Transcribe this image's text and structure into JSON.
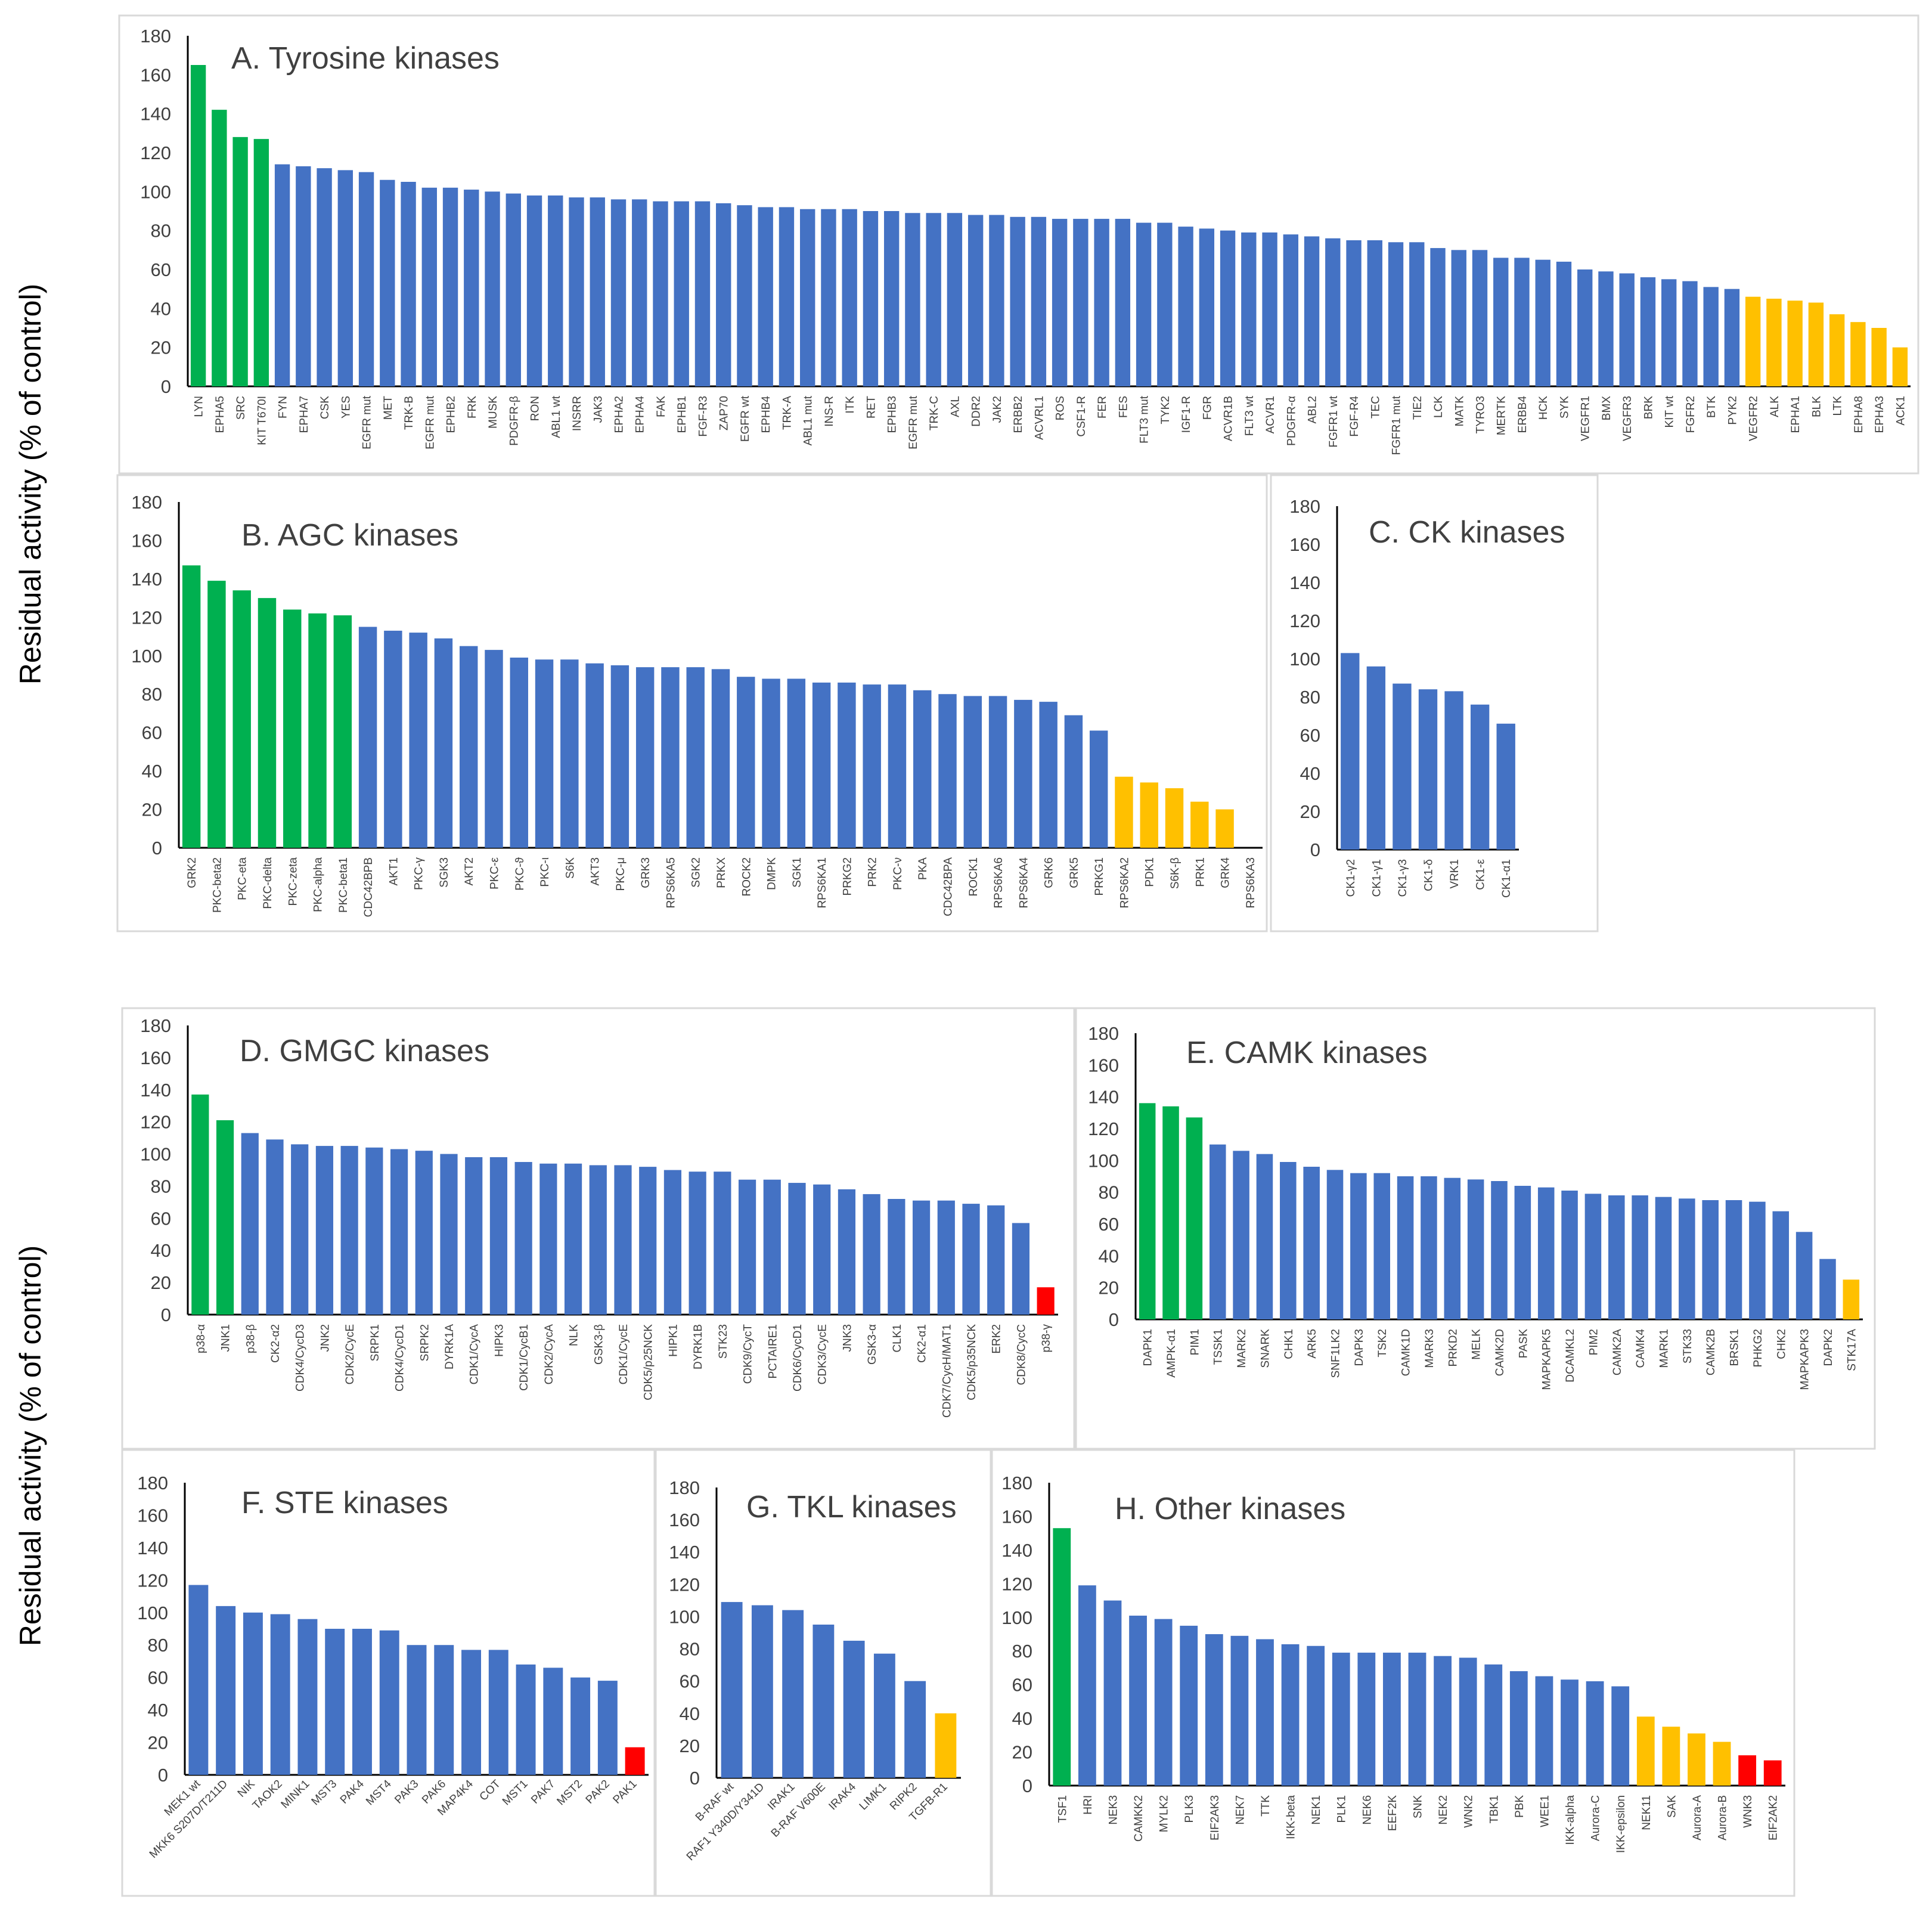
{
  "figure": {
    "ylabel_top": "Residual activity (% of control)",
    "ylabel_bottom": "Residual activity (% of control)",
    "colors": {
      "high": "#00b050",
      "normal": "#4472c4",
      "low": "#ffc000",
      "very_low": "#ff0000"
    },
    "yticks": [
      "0",
      "20",
      "40",
      "60",
      "80",
      "100",
      "120",
      "140",
      "160",
      "180"
    ]
  },
  "chart_data": [
    {
      "id": "A",
      "type": "bar",
      "title": "A. Tyrosine kinases",
      "ylabel": "Residual activity (% of control)",
      "ylim": [
        0,
        180
      ],
      "categories": [
        "LYN",
        "EPHA5",
        "SRC",
        "KIT T670I",
        "FYN",
        "EPHA7",
        "CSK",
        "YES",
        "EGFR mut",
        "MET",
        "TRK-B",
        "EGFR mut",
        "EPHB2",
        "FRK",
        "MUSK",
        "PDGFR-β",
        "RON",
        "ABL1 wt",
        "INSRR",
        "JAK3",
        "EPHA2",
        "EPHA4",
        "FAK",
        "EPHB1",
        "FGF-R3",
        "ZAP70",
        "EGFR wt",
        "EPHB4",
        "TRK-A",
        "ABL1 mut",
        "INS-R",
        "ITK",
        "RET",
        "EPHB3",
        "EGFR mut",
        "TRK-C",
        "AXL",
        "DDR2",
        "JAK2",
        "ERBB2",
        "ACVRL1",
        "ROS",
        "CSF1-R",
        "FER",
        "FES",
        "FLT3 mut",
        "TYK2",
        "IGF1-R",
        "FGR",
        "ACVR1B",
        "FLT3 wt",
        "ACVR1",
        "PDGFR-α",
        "ABL2",
        "FGFR1 wt",
        "FGF-R4",
        "TEC",
        "FGFR1 mut",
        "TIE2",
        "LCK",
        "MATK",
        "TYRO3",
        "MERTK",
        "ERBB4",
        "HCK",
        "SYK",
        "VEGFR1",
        "BMX",
        "VEGFR3",
        "BRK",
        "KIT wt",
        "FGFR2",
        "BTK",
        "PYK2",
        "VEGFR2",
        "ALK",
        "EPHA1",
        "BLK",
        "LTK",
        "EPHA8",
        "EPHA3",
        "ACK1"
      ],
      "values": [
        165,
        142,
        128,
        127,
        114,
        113,
        112,
        111,
        110,
        106,
        105,
        102,
        102,
        101,
        100,
        99,
        98,
        98,
        97,
        97,
        96,
        96,
        95,
        95,
        95,
        94,
        93,
        92,
        92,
        91,
        91,
        91,
        90,
        90,
        89,
        89,
        89,
        88,
        88,
        87,
        87,
        86,
        86,
        86,
        86,
        84,
        84,
        82,
        81,
        80,
        79,
        79,
        78,
        77,
        76,
        75,
        75,
        74,
        74,
        71,
        70,
        70,
        66,
        66,
        65,
        64,
        60,
        59,
        58,
        56,
        55,
        54,
        51,
        50,
        46,
        45,
        44,
        43,
        37,
        33,
        30,
        20
      ]
    },
    {
      "id": "B",
      "type": "bar",
      "title": "B. AGC kinases",
      "ylim": [
        0,
        180
      ],
      "categories": [
        "GRK2",
        "PKC-beta2",
        "PKC-eta",
        "PKC-delta",
        "PKC-zeta",
        "PKC-alpha",
        "PKC-beta1",
        "CDC42BPB",
        "AKT1",
        "PKC-γ",
        "SGK3",
        "AKT2",
        "PKC-ε",
        "PKC-ϑ",
        "PKC-ι",
        "S6K",
        "AKT3",
        "PKC-μ",
        "GRK3",
        "RPS6KA5",
        "SGK2",
        "PRKX",
        "ROCK2",
        "DMPK",
        "SGK1",
        "RPS6KA1",
        "PRKG2",
        "PRK2",
        "PKC-ν",
        "PKA",
        "CDC42BPA",
        "ROCK1",
        "RPS6KA6",
        "RPS6KA4",
        "GRK6",
        "GRK5",
        "PRKG1",
        "RPS6KA2",
        "PDK1",
        "S6K-β",
        "PRK1",
        "GRK4",
        "RPS6KA3"
      ],
      "values": [
        147,
        139,
        134,
        130,
        124,
        122,
        121,
        115,
        113,
        112,
        109,
        105,
        103,
        99,
        98,
        98,
        96,
        95,
        94,
        94,
        94,
        93,
        89,
        88,
        88,
        86,
        86,
        85,
        85,
        82,
        80,
        79,
        79,
        77,
        76,
        69,
        61,
        37,
        34,
        31,
        24,
        20,
        0
      ]
    },
    {
      "id": "C",
      "type": "bar",
      "title": "C. CK kinases",
      "ylim": [
        0,
        180
      ],
      "categories": [
        "CK1-γ2",
        "CK1-γ1",
        "CK1-γ3",
        "CK1-δ",
        "VRK1",
        "CK1-ε",
        "CK1-α1"
      ],
      "values": [
        103,
        96,
        87,
        84,
        83,
        76,
        66
      ]
    },
    {
      "id": "D",
      "type": "bar",
      "title": "D. GMGC kinases",
      "ylim": [
        0,
        180
      ],
      "categories": [
        "p38-α",
        "JNK1",
        "p38-β",
        "CK2-α2",
        "CDK4/CycD3",
        "JNK2",
        "CDK2/CycE",
        "SRPK1",
        "CDK4/CycD1",
        "SRPK2",
        "DYRK1A",
        "CDK1/CycA",
        "HIPK3",
        "CDK1/CycB1",
        "CDK2/CycA",
        "NLK",
        "GSK3-β",
        "CDK1/CycE",
        "CDK5/p25NCK",
        "HIPK1",
        "DYRK1B",
        "STK23",
        "CDK9/CycT",
        "PCTAIRE1",
        "CDK6/CycD1",
        "CDK3/CycE",
        "JNK3",
        "GSK3-α",
        "CLK1",
        "CK2-α1",
        "CDK7/CycH/MAT1",
        "CDK5/p35NCK",
        "ERK2",
        "CDK8/CycC",
        "p38-γ"
      ],
      "values": [
        137,
        121,
        113,
        109,
        106,
        105,
        105,
        104,
        103,
        102,
        100,
        98,
        98,
        95,
        94,
        94,
        93,
        93,
        92,
        90,
        89,
        89,
        84,
        84,
        82,
        81,
        78,
        75,
        72,
        71,
        71,
        69,
        68,
        57,
        17
      ]
    },
    {
      "id": "E",
      "type": "bar",
      "title": "E. CAMK kinases",
      "ylim": [
        0,
        180
      ],
      "categories": [
        "DAPK1",
        "AMPK-α1",
        "PIM1",
        "TSSK1",
        "MARK2",
        "SNARK",
        "CHK1",
        "ARK5",
        "SNF1LK2",
        "DAPK3",
        "TSK2",
        "CAMK1D",
        "MARK3",
        "PRKD2",
        "MELK",
        "CAMK2D",
        "PASK",
        "MAPKAPK5",
        "DCAMKL2",
        "PIM2",
        "CAMK2A",
        "CAMK4",
        "MARK1",
        "STK33",
        "CAMK2B",
        "BRSK1",
        "PHKG2",
        "CHK2",
        "MAPKAPK3",
        "DAPK2",
        "STK17A"
      ],
      "values": [
        136,
        134,
        127,
        110,
        106,
        104,
        99,
        96,
        94,
        92,
        92,
        90,
        90,
        89,
        88,
        87,
        84,
        83,
        81,
        79,
        78,
        78,
        77,
        76,
        75,
        75,
        74,
        68,
        55,
        38,
        25
      ]
    },
    {
      "id": "F",
      "type": "bar",
      "title": "F. STE kinases",
      "ylim": [
        0,
        180
      ],
      "categories": [
        "MEK1 wt",
        "MKK6 S207D/T211D",
        "NIK",
        "TAOK2",
        "MINK1",
        "MST3",
        "PAK4",
        "MST4",
        "PAK3",
        "PAK6",
        "MAP4K4",
        "COT",
        "MST1",
        "PAK7",
        "MST2",
        "PAK2",
        "PAK1"
      ],
      "values": [
        117,
        104,
        100,
        99,
        96,
        90,
        90,
        89,
        80,
        80,
        77,
        77,
        68,
        66,
        60,
        58,
        17
      ]
    },
    {
      "id": "G",
      "type": "bar",
      "title": "G. TKL kinases",
      "ylim": [
        0,
        180
      ],
      "categories": [
        "B-RAF wt",
        "RAF1 Y340D/Y341D",
        "IRAK1",
        "B-RAF V600E",
        "IRAK4",
        "LIMK1",
        "RIPK2",
        "TGFB-R1"
      ],
      "values": [
        109,
        107,
        104,
        95,
        85,
        77,
        60,
        40
      ]
    },
    {
      "id": "H",
      "type": "bar",
      "title": "H. Other kinases",
      "ylim": [
        0,
        180
      ],
      "categories": [
        "TSF1",
        "HRI",
        "NEK3",
        "CAMKK2",
        "MYLK2",
        "PLK3",
        "EIF2AK3",
        "NEK7",
        "TTK",
        "IKK-beta",
        "NEK1",
        "PLK1",
        "NEK6",
        "EEF2K",
        "SNK",
        "NEK2",
        "WNK2",
        "TBK1",
        "PBK",
        "WEE1",
        "IKK-alpha",
        "Aurora-C",
        "IKK-epsilon",
        "NEK11",
        "SAK",
        "Aurora-A",
        "Aurora-B",
        "WNK3",
        "EIF2AK2"
      ],
      "values": [
        153,
        119,
        110,
        101,
        99,
        95,
        90,
        89,
        87,
        84,
        83,
        79,
        79,
        79,
        79,
        77,
        76,
        72,
        68,
        65,
        63,
        62,
        59,
        41,
        35,
        31,
        26,
        18,
        15
      ]
    }
  ]
}
